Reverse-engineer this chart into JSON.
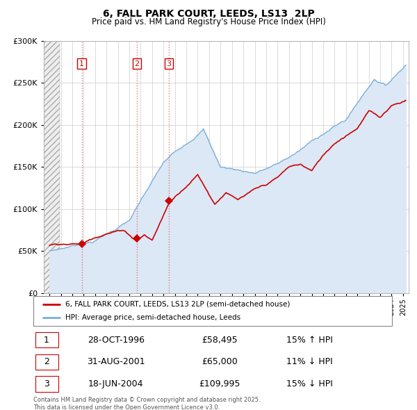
{
  "title": "6, FALL PARK COURT, LEEDS, LS13  2LP",
  "subtitle": "Price paid vs. HM Land Registry's House Price Index (HPI)",
  "legend_line1": "6, FALL PARK COURT, LEEDS, LS13 2LP (semi-detached house)",
  "legend_line2": "HPI: Average price, semi-detached house, Leeds",
  "transactions": [
    {
      "num": 1,
      "date": "28-OCT-1996",
      "price": 58495,
      "hpi_pct": "15%",
      "direction": "↑"
    },
    {
      "num": 2,
      "date": "31-AUG-2001",
      "price": 65000,
      "hpi_pct": "11%",
      "direction": "↓"
    },
    {
      "num": 3,
      "date": "18-JUN-2004",
      "price": 109995,
      "hpi_pct": "15%",
      "direction": "↓"
    }
  ],
  "transaction_years": [
    1996.83,
    2001.67,
    2004.47
  ],
  "transaction_prices": [
    58495,
    65000,
    109995
  ],
  "footnote": "Contains HM Land Registry data © Crown copyright and database right 2025.\nThis data is licensed under the Open Government Licence v3.0.",
  "price_line_color": "#cc0000",
  "hpi_line_color": "#7aaedd",
  "hpi_fill_color": "#dce8f5",
  "dashed_line_color": "#e06060",
  "marker_color": "#cc0000",
  "background_color": "#ffffff",
  "grid_color": "#cccccc",
  "ylim": [
    0,
    300000
  ],
  "yticks": [
    0,
    50000,
    100000,
    150000,
    200000,
    250000,
    300000
  ],
  "xlim_start": 1993.5,
  "xlim_end": 2025.5
}
